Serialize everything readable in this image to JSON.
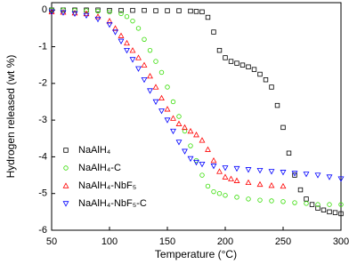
{
  "chart_data": {
    "type": "scatter",
    "x_label": "Temperature (°C)",
    "y_label": "Hydrogen released (wt %)",
    "xlim": [
      50,
      300
    ],
    "ylim": [
      -6,
      0.2
    ],
    "xticks": [
      50,
      100,
      150,
      200,
      250,
      300
    ],
    "yticks": [
      0,
      -1,
      -2,
      -3,
      -4,
      -5,
      -6
    ],
    "legend": "lower-left",
    "series": [
      {
        "name": "NaAlH₄",
        "color": "#000000",
        "marker": "square",
        "x": [
          50,
          60,
          70,
          80,
          90,
          100,
          110,
          120,
          130,
          140,
          150,
          160,
          170,
          175,
          180,
          185,
          190,
          195,
          200,
          205,
          210,
          215,
          220,
          225,
          230,
          235,
          240,
          245,
          250,
          255,
          260,
          265,
          270,
          275,
          280,
          285,
          290,
          295,
          300
        ],
        "values": [
          0,
          0,
          0,
          0,
          0,
          -0.01,
          -0.01,
          -0.01,
          -0.01,
          -0.02,
          -0.02,
          -0.02,
          -0.03,
          -0.04,
          -0.05,
          -0.2,
          -0.6,
          -1.1,
          -1.3,
          -1.4,
          -1.45,
          -1.5,
          -1.55,
          -1.62,
          -1.75,
          -1.9,
          -2.1,
          -2.6,
          -3.2,
          -3.9,
          -4.5,
          -4.9,
          -5.15,
          -5.3,
          -5.4,
          -5.45,
          -5.5,
          -5.52,
          -5.55
        ]
      },
      {
        "name": "NaAlH₄-C",
        "color": "#33dd00",
        "marker": "circle",
        "x": [
          50,
          60,
          70,
          80,
          90,
          100,
          110,
          115,
          120,
          125,
          130,
          135,
          140,
          145,
          150,
          155,
          160,
          165,
          170,
          175,
          180,
          185,
          190,
          195,
          200,
          210,
          220,
          230,
          240,
          250,
          260,
          270,
          280,
          290,
          300
        ],
        "values": [
          0,
          0,
          -0.01,
          -0.02,
          -0.03,
          -0.05,
          -0.1,
          -0.18,
          -0.3,
          -0.5,
          -0.8,
          -1.1,
          -1.4,
          -1.7,
          -2.1,
          -2.5,
          -2.9,
          -3.3,
          -3.7,
          -4.1,
          -4.5,
          -4.8,
          -4.95,
          -5.0,
          -5.05,
          -5.1,
          -5.15,
          -5.18,
          -5.2,
          -5.22,
          -5.25,
          -5.27,
          -5.3,
          -5.3,
          -5.3
        ]
      },
      {
        "name": "NaAlH₄-NbF₅",
        "color": "#ff0000",
        "marker": "triangle-up",
        "x": [
          50,
          60,
          70,
          80,
          90,
          100,
          105,
          110,
          115,
          120,
          125,
          130,
          135,
          140,
          145,
          150,
          155,
          160,
          165,
          170,
          175,
          180,
          185,
          190,
          195,
          200,
          205,
          210,
          220,
          230,
          240,
          250
        ],
        "values": [
          -0.05,
          -0.06,
          -0.08,
          -0.1,
          -0.18,
          -0.3,
          -0.5,
          -0.7,
          -0.9,
          -1.1,
          -1.3,
          -1.5,
          -1.8,
          -2.1,
          -2.4,
          -2.7,
          -2.95,
          -3.1,
          -3.2,
          -3.3,
          -3.4,
          -3.55,
          -3.8,
          -4.1,
          -4.4,
          -4.55,
          -4.6,
          -4.65,
          -4.7,
          -4.75,
          -4.78,
          -4.8
        ]
      },
      {
        "name": "NaAlH₄-NbF₅-C",
        "color": "#0000ff",
        "marker": "triangle-down",
        "x": [
          50,
          60,
          70,
          80,
          90,
          100,
          105,
          110,
          115,
          120,
          125,
          130,
          135,
          140,
          145,
          150,
          155,
          160,
          165,
          170,
          175,
          180,
          190,
          200,
          210,
          220,
          230,
          240,
          250,
          260,
          270,
          280,
          290,
          300
        ],
        "values": [
          -0.05,
          -0.07,
          -0.1,
          -0.15,
          -0.25,
          -0.4,
          -0.6,
          -0.85,
          -1.1,
          -1.35,
          -1.6,
          -1.9,
          -2.2,
          -2.5,
          -2.75,
          -3.0,
          -3.3,
          -3.6,
          -3.85,
          -4.05,
          -4.15,
          -4.2,
          -4.25,
          -4.3,
          -4.32,
          -4.35,
          -4.37,
          -4.4,
          -4.42,
          -4.45,
          -4.47,
          -4.5,
          -4.55,
          -4.6
        ]
      }
    ]
  }
}
